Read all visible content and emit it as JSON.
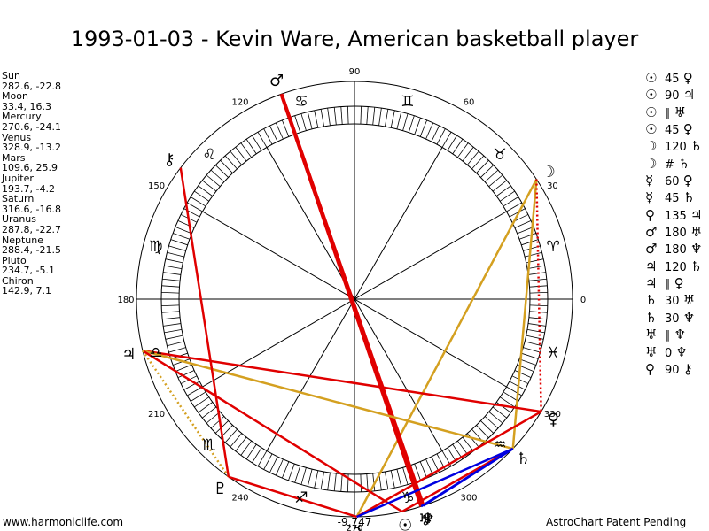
{
  "title": "1993-01-03 - Kevin Ware, American basketball player",
  "planets": [
    {
      "name": "Sun",
      "coords": "282.6, -22.8"
    },
    {
      "name": "Moon",
      "coords": "33.4, 16.3"
    },
    {
      "name": "Mercury",
      "coords": "270.6, -24.1"
    },
    {
      "name": "Venus",
      "coords": "328.9, -13.2"
    },
    {
      "name": "Mars",
      "coords": "109.6, 25.9"
    },
    {
      "name": "Jupiter",
      "coords": "193.7, -4.2"
    },
    {
      "name": "Saturn",
      "coords": "316.6, -16.8"
    },
    {
      "name": "Uranus",
      "coords": "287.8, -22.7"
    },
    {
      "name": "Neptune",
      "coords": "288.4, -21.5"
    },
    {
      "name": "Pluto",
      "coords": "234.7, -5.1"
    },
    {
      "name": "Chiron",
      "coords": "142.9, 7.1"
    }
  ],
  "aspects": [
    {
      "p1": "☉",
      "value": "45",
      "p2": "♀"
    },
    {
      "p1": "☉",
      "value": "90",
      "p2": "♃"
    },
    {
      "p1": "☉",
      "value": "∥",
      "p2": "♅"
    },
    {
      "p1": "☉",
      "value": "45",
      "p2": "♀"
    },
    {
      "p1": "☽",
      "value": "120",
      "p2": "♄"
    },
    {
      "p1": "☽",
      "value": "#",
      "p2": "♄"
    },
    {
      "p1": "☿",
      "value": "60",
      "p2": "♀"
    },
    {
      "p1": "☿",
      "value": "45",
      "p2": "♄"
    },
    {
      "p1": "♀",
      "value": "135",
      "p2": "♃"
    },
    {
      "p1": "♂",
      "value": "180",
      "p2": "♅"
    },
    {
      "p1": "♂",
      "value": "180",
      "p2": "♆"
    },
    {
      "p1": "♃",
      "value": "120",
      "p2": "♄"
    },
    {
      "p1": "♃",
      "value": "∥",
      "p2": "♀"
    },
    {
      "p1": "♄",
      "value": "30",
      "p2": "♅"
    },
    {
      "p1": "♄",
      "value": "30",
      "p2": "♆"
    },
    {
      "p1": "♅",
      "value": "∥",
      "p2": "♆"
    },
    {
      "p1": "♅",
      "value": "0",
      "p2": "♆"
    },
    {
      "p1": "♀",
      "value": "90",
      "p2": "⚷"
    }
  ],
  "degree_labels": [
    "0",
    "30",
    "60",
    "90",
    "120",
    "150",
    "180",
    "210",
    "240",
    "270",
    "300",
    "330"
  ],
  "bottom_label": "-9,747",
  "zodiac_signs": [
    "♈",
    "♉",
    "♊",
    "♋",
    "♌",
    "♍",
    "♎",
    "♏",
    "♐",
    "♑",
    "♒",
    "♓"
  ],
  "chart_planet_glyphs": [
    {
      "name": "Sun",
      "glyph": "☉",
      "lon": 282.6
    },
    {
      "name": "Moon",
      "glyph": "☽",
      "lon": 33.4
    },
    {
      "name": "Mercury",
      "glyph": "☿",
      "lon": 270.6
    },
    {
      "name": "Venus",
      "glyph": "♀",
      "lon": 328.9
    },
    {
      "name": "Mars",
      "glyph": "♂",
      "lon": 109.6
    },
    {
      "name": "Jupiter",
      "glyph": "♃",
      "lon": 193.7
    },
    {
      "name": "Saturn",
      "glyph": "♄",
      "lon": 316.6
    },
    {
      "name": "Uranus",
      "glyph": "♅",
      "lon": 287.8
    },
    {
      "name": "Neptune",
      "glyph": "♆",
      "lon": 288.4
    },
    {
      "name": "Pluto",
      "glyph": "♇",
      "lon": 234.7
    },
    {
      "name": "Chiron",
      "glyph": "⚷",
      "lon": 142.9
    }
  ],
  "aspect_lines": [
    {
      "a": "Moon",
      "b": "Saturn",
      "color": "#d4a020",
      "style": "solid"
    },
    {
      "a": "Moon",
      "b": "Mercury",
      "color": "#d4a020",
      "style": "solid"
    },
    {
      "a": "Moon",
      "b": "Venus",
      "color": "#e00000",
      "style": "dotted"
    },
    {
      "a": "Mars",
      "b": "Uranus",
      "color": "#e00000",
      "style": "thick"
    },
    {
      "a": "Mars",
      "b": "Neptune",
      "color": "#e00000",
      "style": "thick"
    },
    {
      "a": "Jupiter",
      "b": "Venus",
      "color": "#e00000",
      "style": "solid"
    },
    {
      "a": "Jupiter",
      "b": "Saturn",
      "color": "#d4a020",
      "style": "solid"
    },
    {
      "a": "Jupiter",
      "b": "Sun",
      "color": "#e00000",
      "style": "solid"
    },
    {
      "a": "Jupiter",
      "b": "Pluto",
      "color": "#d4a020",
      "style": "dotted"
    },
    {
      "a": "Chiron",
      "b": "Pluto",
      "color": "#e00000",
      "style": "solid"
    },
    {
      "a": "Pluto",
      "b": "Mercury",
      "color": "#e00000",
      "style": "solid"
    },
    {
      "a": "Mercury",
      "b": "Venus",
      "color": "#e00000",
      "style": "solid"
    },
    {
      "a": "Sun",
      "b": "Saturn",
      "color": "#e00000",
      "style": "solid"
    },
    {
      "a": "Uranus",
      "b": "Saturn",
      "color": "#0000e0",
      "style": "solid"
    },
    {
      "a": "Neptune",
      "b": "Saturn",
      "color": "#0000e0",
      "style": "solid"
    },
    {
      "a": "Mercury",
      "b": "Saturn",
      "color": "#0000e0",
      "style": "solid"
    }
  ],
  "footer_left": "www.harmoniclife.com",
  "footer_right": "AstroChart Patent Pending"
}
